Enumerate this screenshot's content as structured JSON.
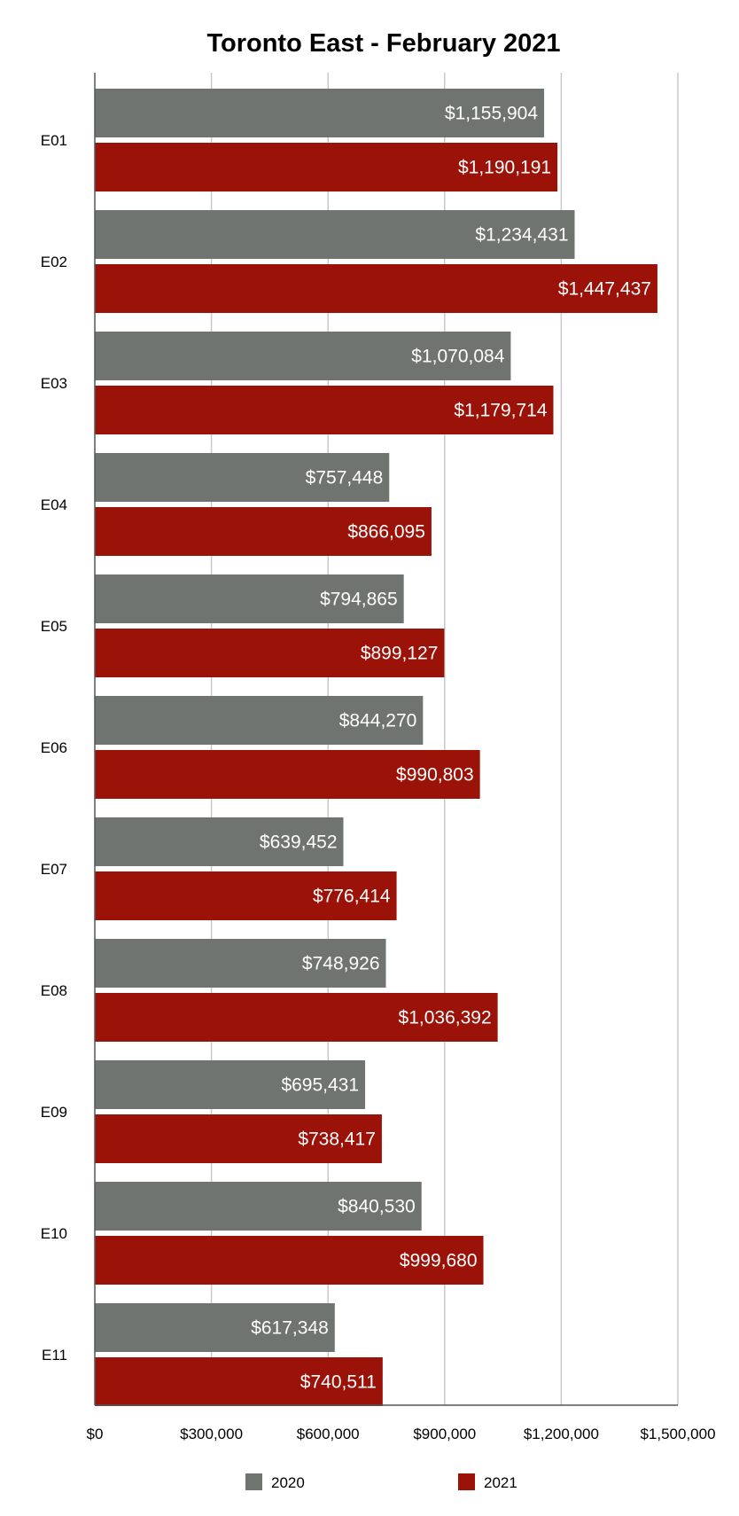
{
  "chart_data": {
    "type": "bar",
    "orientation": "horizontal",
    "title": "Toronto East - February 2021",
    "xlabel": "",
    "ylabel": "",
    "categories": [
      "E01",
      "E02",
      "E03",
      "E04",
      "E05",
      "E06",
      "E07",
      "E08",
      "E09",
      "E10",
      "E11"
    ],
    "series": [
      {
        "name": "2020",
        "color": "#6f7471",
        "values": [
          1155904,
          1234431,
          1070084,
          757448,
          794865,
          844270,
          639452,
          748926,
          695431,
          840530,
          617348
        ],
        "labels": [
          "$1,155,904",
          "$1,234,431",
          "$1,070,084",
          "$757,448",
          "$794,865",
          "$844,270",
          "$639,452",
          "$748,926",
          "$695,431",
          "$840,530",
          "$617,348"
        ]
      },
      {
        "name": "2021",
        "color": "#9b1209",
        "values": [
          1190191,
          1447437,
          1179714,
          866095,
          899127,
          990803,
          776414,
          1036392,
          738417,
          999680,
          740511
        ],
        "labels": [
          "$1,190,191",
          "$1,447,437",
          "$1,179,714",
          "$866,095",
          "$899,127",
          "$990,803",
          "$776,414",
          "$1,036,392",
          "$738,417",
          "$999,680",
          "$740,511"
        ]
      }
    ],
    "xlim": [
      0,
      1500000
    ],
    "x_ticks": [
      0,
      300000,
      600000,
      900000,
      1200000,
      1500000
    ],
    "x_tick_labels": [
      "$0",
      "$300,000",
      "$600,000",
      "$900,000",
      "$1,200,000",
      "$1,500,000"
    ],
    "grid": "vertical",
    "legend_position": "bottom"
  }
}
